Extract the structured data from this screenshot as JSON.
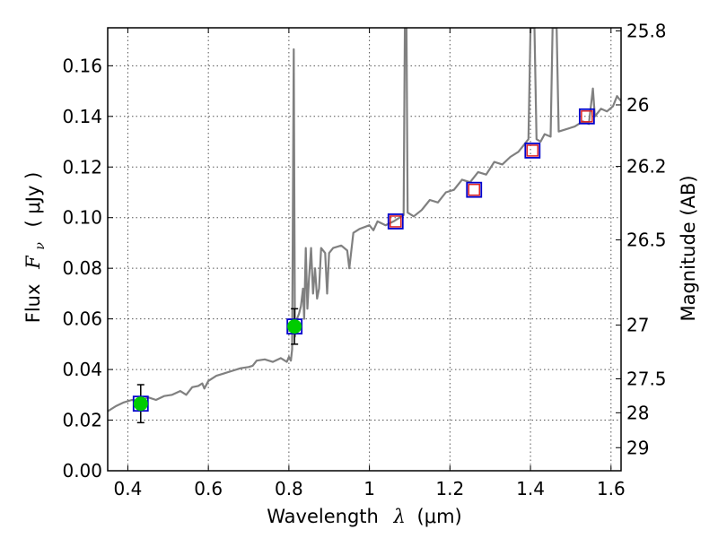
{
  "chart_data": {
    "type": "scatter",
    "xlabel_prefix": "Wavelength",
    "xlabel_var": "λ",
    "xlabel_unit": "(μm)",
    "ylabel_prefix": "Flux",
    "ylabel_var": "F",
    "ylabel_sub": "ν",
    "ylabel_unit": "( μJy )",
    "y2label": "Magnitude (AB)",
    "xlim": [
      0.35,
      1.625
    ],
    "ylim": [
      0.0,
      0.175
    ],
    "grid": true,
    "x_ticks": [
      {
        "value": 0.4,
        "label": "0.4"
      },
      {
        "value": 0.6,
        "label": "0.6"
      },
      {
        "value": 0.8,
        "label": "0.8"
      },
      {
        "value": 1.0,
        "label": "1"
      },
      {
        "value": 1.2,
        "label": "1.2"
      },
      {
        "value": 1.4,
        "label": "1.4"
      },
      {
        "value": 1.6,
        "label": "1.6"
      }
    ],
    "y_ticks": [
      {
        "value": 0.0,
        "label": "0.00"
      },
      {
        "value": 0.02,
        "label": "0.02"
      },
      {
        "value": 0.04,
        "label": "0.04"
      },
      {
        "value": 0.06,
        "label": "0.06"
      },
      {
        "value": 0.08,
        "label": "0.08"
      },
      {
        "value": 0.1,
        "label": "0.10"
      },
      {
        "value": 0.12,
        "label": "0.12"
      },
      {
        "value": 0.14,
        "label": "0.14"
      },
      {
        "value": 0.16,
        "label": "0.16"
      }
    ],
    "y2_ticks": [
      {
        "mag": 25.8,
        "label": "25.8"
      },
      {
        "mag": 26.0,
        "label": "26"
      },
      {
        "mag": 26.2,
        "label": "26.2"
      },
      {
        "mag": 26.5,
        "label": "26.5"
      },
      {
        "mag": 27.0,
        "label": "27"
      },
      {
        "mag": 27.5,
        "label": "27.5"
      },
      {
        "mag": 28.0,
        "label": "28"
      },
      {
        "mag": 29.0,
        "label": "29"
      }
    ],
    "model_spectrum": {
      "color": "#808080",
      "points": [
        [
          0.35,
          0.0235
        ],
        [
          0.37,
          0.0255
        ],
        [
          0.39,
          0.027
        ],
        [
          0.41,
          0.028
        ],
        [
          0.43,
          0.0275
        ],
        [
          0.45,
          0.029
        ],
        [
          0.47,
          0.028
        ],
        [
          0.49,
          0.0295
        ],
        [
          0.51,
          0.03
        ],
        [
          0.53,
          0.0315
        ],
        [
          0.545,
          0.03
        ],
        [
          0.56,
          0.033
        ],
        [
          0.575,
          0.0335
        ],
        [
          0.585,
          0.0345
        ],
        [
          0.59,
          0.0325
        ],
        [
          0.6,
          0.0355
        ],
        [
          0.62,
          0.0375
        ],
        [
          0.64,
          0.0385
        ],
        [
          0.66,
          0.0395
        ],
        [
          0.68,
          0.0405
        ],
        [
          0.7,
          0.041
        ],
        [
          0.71,
          0.0415
        ],
        [
          0.72,
          0.0435
        ],
        [
          0.74,
          0.044
        ],
        [
          0.76,
          0.043
        ],
        [
          0.78,
          0.0445
        ],
        [
          0.795,
          0.043
        ],
        [
          0.8,
          0.045
        ],
        [
          0.805,
          0.0435
        ],
        [
          0.808,
          0.048
        ],
        [
          0.812,
          0.1665
        ],
        [
          0.815,
          0.053
        ],
        [
          0.82,
          0.06
        ],
        [
          0.825,
          0.062
        ],
        [
          0.83,
          0.065
        ],
        [
          0.835,
          0.072
        ],
        [
          0.838,
          0.06
        ],
        [
          0.842,
          0.088
        ],
        [
          0.846,
          0.064
        ],
        [
          0.85,
          0.076
        ],
        [
          0.855,
          0.088
        ],
        [
          0.86,
          0.07
        ],
        [
          0.865,
          0.08
        ],
        [
          0.87,
          0.068
        ],
        [
          0.875,
          0.072
        ],
        [
          0.88,
          0.088
        ],
        [
          0.89,
          0.086
        ],
        [
          0.895,
          0.07
        ],
        [
          0.9,
          0.086
        ],
        [
          0.91,
          0.088
        ],
        [
          0.93,
          0.089
        ],
        [
          0.945,
          0.087
        ],
        [
          0.95,
          0.08
        ],
        [
          0.96,
          0.094
        ],
        [
          0.975,
          0.0955
        ],
        [
          1.0,
          0.097
        ],
        [
          1.01,
          0.095
        ],
        [
          1.02,
          0.0985
        ],
        [
          1.04,
          0.097
        ],
        [
          1.06,
          0.0985
        ],
        [
          1.075,
          0.1
        ],
        [
          1.085,
          0.101
        ],
        [
          1.088,
          0.175
        ],
        [
          1.092,
          0.175
        ],
        [
          1.095,
          0.102
        ],
        [
          1.11,
          0.1005
        ],
        [
          1.13,
          0.103
        ],
        [
          1.15,
          0.107
        ],
        [
          1.17,
          0.106
        ],
        [
          1.19,
          0.11
        ],
        [
          1.21,
          0.111
        ],
        [
          1.23,
          0.115
        ],
        [
          1.25,
          0.114
        ],
        [
          1.27,
          0.118
        ],
        [
          1.29,
          0.117
        ],
        [
          1.31,
          0.122
        ],
        [
          1.33,
          0.121
        ],
        [
          1.35,
          0.124
        ],
        [
          1.37,
          0.126
        ],
        [
          1.385,
          0.129
        ],
        [
          1.395,
          0.131
        ],
        [
          1.4,
          0.175
        ],
        [
          1.41,
          0.175
        ],
        [
          1.415,
          0.131
        ],
        [
          1.425,
          0.13
        ],
        [
          1.435,
          0.133
        ],
        [
          1.45,
          0.132
        ],
        [
          1.455,
          0.175
        ],
        [
          1.465,
          0.175
        ],
        [
          1.47,
          0.134
        ],
        [
          1.49,
          0.135
        ],
        [
          1.51,
          0.136
        ],
        [
          1.53,
          0.138
        ],
        [
          1.545,
          0.137
        ],
        [
          1.555,
          0.151
        ],
        [
          1.56,
          0.14
        ],
        [
          1.575,
          0.143
        ],
        [
          1.59,
          0.142
        ],
        [
          1.605,
          0.144
        ],
        [
          1.615,
          0.148
        ],
        [
          1.625,
          0.146
        ]
      ]
    },
    "observed_points": {
      "color": "#00cc00",
      "points": [
        {
          "x": 0.432,
          "y": 0.0265,
          "yerr": 0.0075
        },
        {
          "x": 0.814,
          "y": 0.057,
          "yerr": 0.007
        }
      ]
    },
    "model_photometry": {
      "color": "#0000cc",
      "points": [
        {
          "x": 0.432,
          "y": 0.0265
        },
        {
          "x": 0.814,
          "y": 0.057
        },
        {
          "x": 1.065,
          "y": 0.0985
        },
        {
          "x": 1.26,
          "y": 0.111
        },
        {
          "x": 1.405,
          "y": 0.1265
        },
        {
          "x": 1.54,
          "y": 0.14
        }
      ]
    },
    "upper_limits": {
      "color": "#dd2222",
      "points": [
        {
          "x": 1.065,
          "y": 0.0985
        },
        {
          "x": 1.26,
          "y": 0.111
        },
        {
          "x": 1.405,
          "y": 0.1265
        },
        {
          "x": 1.54,
          "y": 0.14
        }
      ]
    }
  }
}
